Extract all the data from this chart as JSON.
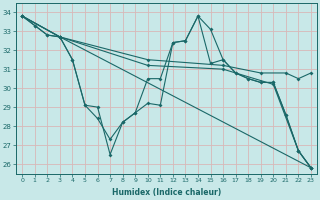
{
  "xlabel": "Humidex (Indice chaleur)",
  "bg_color": "#c8e8e8",
  "grid_color": "#d8b8b8",
  "line_color": "#1a6868",
  "xlim": [
    -0.5,
    23.5
  ],
  "ylim": [
    25.5,
    34.5
  ],
  "yticks": [
    26,
    27,
    28,
    29,
    30,
    31,
    32,
    33,
    34
  ],
  "xticks": [
    0,
    1,
    2,
    3,
    4,
    5,
    6,
    7,
    8,
    9,
    10,
    11,
    12,
    13,
    14,
    15,
    16,
    17,
    18,
    19,
    20,
    21,
    22,
    23
  ],
  "series": [
    {
      "x": [
        0,
        1,
        2,
        3,
        4,
        5,
        6,
        7,
        8,
        9,
        10,
        11,
        12,
        13,
        14,
        15,
        16,
        17,
        18,
        19,
        20,
        21,
        22,
        23
      ],
      "y": [
        33.8,
        33.3,
        32.8,
        32.7,
        31.5,
        29.1,
        29.0,
        26.5,
        28.2,
        28.7,
        29.2,
        29.1,
        32.4,
        32.5,
        33.8,
        33.1,
        31.5,
        30.8,
        30.5,
        30.3,
        30.3,
        28.6,
        26.7,
        25.8
      ]
    },
    {
      "x": [
        0,
        1,
        2,
        3,
        4,
        5,
        6,
        7,
        8,
        9,
        10,
        11,
        12,
        13,
        14,
        15,
        16,
        17,
        18,
        19,
        20,
        21,
        22,
        23
      ],
      "y": [
        33.8,
        33.3,
        32.8,
        32.7,
        31.5,
        29.1,
        28.4,
        27.3,
        28.2,
        28.7,
        30.5,
        30.5,
        32.4,
        32.5,
        33.8,
        31.3,
        31.5,
        30.8,
        30.5,
        30.3,
        30.3,
        28.6,
        26.7,
        25.8
      ]
    },
    {
      "x": [
        0,
        3,
        23
      ],
      "y": [
        33.8,
        32.7,
        25.8
      ]
    },
    {
      "x": [
        0,
        3,
        10,
        16,
        19,
        21,
        22,
        23
      ],
      "y": [
        33.8,
        32.7,
        31.5,
        31.2,
        30.8,
        30.8,
        30.5,
        30.8
      ]
    },
    {
      "x": [
        0,
        3,
        10,
        16,
        20,
        22,
        23
      ],
      "y": [
        33.8,
        32.7,
        31.2,
        31.0,
        30.2,
        26.7,
        25.8
      ]
    }
  ]
}
